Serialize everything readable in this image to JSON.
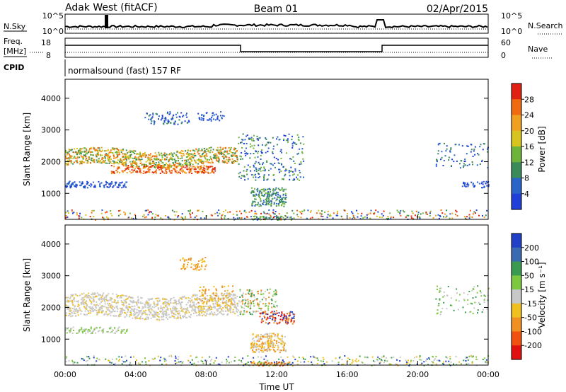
{
  "header": {
    "left_title": "Adak West (fitACF)",
    "center_title": "Beam 01",
    "right_title": "02/Apr/2015"
  },
  "noise_panel": {
    "left_label": "N.Sky",
    "right_label": "N.Search",
    "left_ticks": [
      "10^5",
      "10^0"
    ],
    "right_ticks": [
      "10^5",
      "10^0"
    ]
  },
  "freq_panel": {
    "left_label_line1": "Freq.",
    "left_label_line2": "[MHz]",
    "right_label": "Nave",
    "left_ticks": [
      "18",
      "8"
    ],
    "right_ticks": [
      "60",
      "0"
    ]
  },
  "cpid": {
    "label": "CPID",
    "text": "normalsound (fast) 157 RF"
  },
  "chart_data": [
    {
      "type": "heatmap",
      "name": "power",
      "ylabel": "Slant Range [km]",
      "yticks": [
        1000,
        2000,
        3000,
        4000
      ],
      "ylim": [
        180,
        4600
      ],
      "colorbar": {
        "label": "Power [dB]",
        "ticks": [
          "4",
          "8",
          "12",
          "16",
          "20",
          "24",
          "28"
        ],
        "colors": [
          "#1f3fd8",
          "#2a64c8",
          "#3a8a5a",
          "#6fb43a",
          "#d8c41e",
          "#f0a020",
          "#f06a10",
          "#e02010"
        ]
      }
    },
    {
      "type": "heatmap",
      "name": "velocity",
      "ylabel": "Slant Range [km]",
      "yticks": [
        1000,
        2000,
        3000,
        4000
      ],
      "ylim": [
        180,
        4600
      ],
      "colorbar": {
        "label": "Velocity [m s⁻¹]",
        "ticks": [
          "200",
          "100",
          "50",
          "15",
          "-15",
          "-50",
          "-100",
          "-200"
        ],
        "colors": [
          "#2040c8",
          "#3a6ab0",
          "#3a9a50",
          "#7cc840",
          "#c8c8c8",
          "#f0c020",
          "#f09020",
          "#f05010",
          "#e01010"
        ]
      }
    }
  ],
  "x_axis": {
    "ticks": [
      "00:00",
      "04:00",
      "08:00",
      "12:00",
      "16:00",
      "20:00",
      "00:00"
    ],
    "label": "Time UT"
  }
}
